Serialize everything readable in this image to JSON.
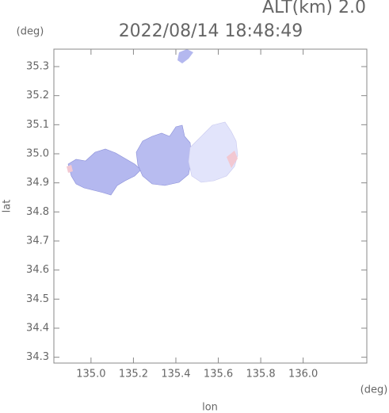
{
  "chart_data": {
    "type": "map",
    "title": "2022/08/14 18:48:49",
    "subtitle": "ALT(km) 2.0",
    "x_unit": "(deg)",
    "y_unit": "(deg)",
    "x_label": "lon",
    "y_label": "lat",
    "xlim": [
      134.825,
      136.3
    ],
    "ylim": [
      34.28,
      35.36
    ],
    "xticks": [
      {
        "value": 135,
        "label": "135.0"
      },
      135.2,
      135.4,
      135.6,
      135.8,
      {
        "value": 136,
        "label": "136.0"
      }
    ],
    "yticks": [
      34.3,
      34.4,
      34.5,
      34.6,
      34.7,
      34.8,
      34.9,
      {
        "value": 35,
        "label": "35.0"
      },
      35.1,
      35.2,
      35.3
    ]
  }
}
